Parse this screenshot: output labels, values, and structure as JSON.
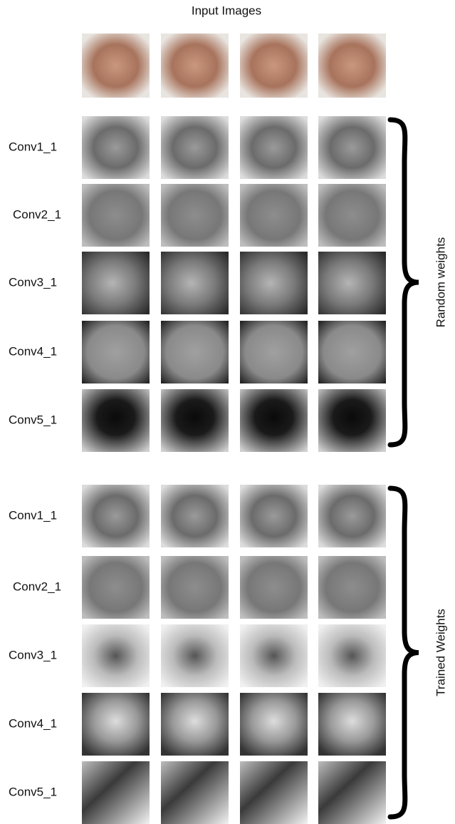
{
  "title": "Input Images",
  "groups": [
    {
      "label": "Random weights",
      "rows": [
        "Conv1_1",
        "Conv2_1",
        "Conv3_1",
        "Conv4_1",
        "Conv5_1"
      ]
    },
    {
      "label": "Trained Weights",
      "rows": [
        "Conv1_1",
        "Conv2_1",
        "Conv3_1",
        "Conv4_1",
        "Conv5_1"
      ]
    }
  ]
}
